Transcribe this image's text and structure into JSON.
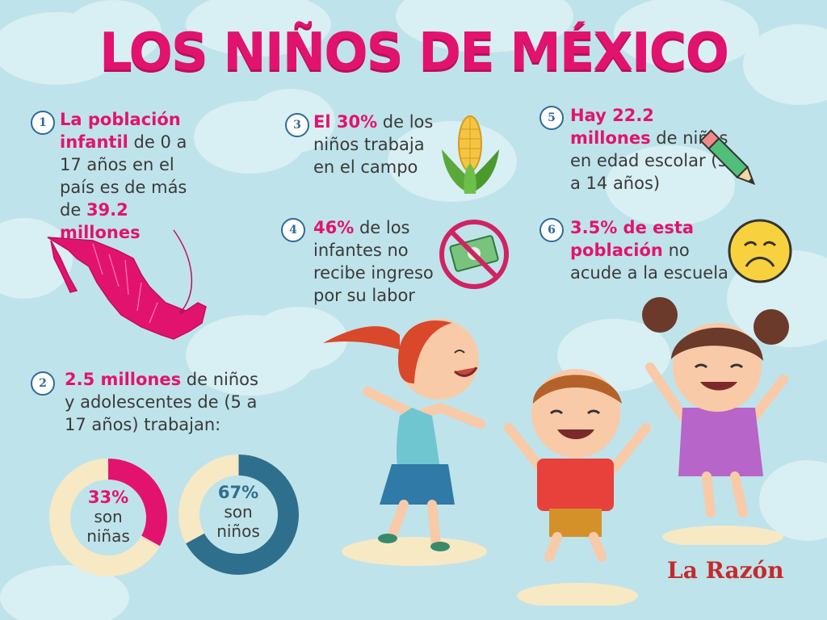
{
  "title": "LOS NIÑOS DE MÉXICO",
  "facts": [
    {
      "num": "1",
      "parts": [
        {
          "t": "La población infantil",
          "h": true
        },
        {
          "t": " de 0 a 17 años en el país es de más de ",
          "h": false
        },
        {
          "t": "39.2 millones",
          "h": true
        }
      ]
    },
    {
      "num": "2",
      "parts": [
        {
          "t": "2.5 millones",
          "h": true
        },
        {
          "t": " de niños y adolescentes de (5 a 17 años) trabajan:",
          "h": false
        }
      ]
    },
    {
      "num": "3",
      "parts": [
        {
          "t": "El 30%",
          "h": true
        },
        {
          "t": " de los niños trabaja en el campo",
          "h": false
        }
      ]
    },
    {
      "num": "4",
      "parts": [
        {
          "t": "46%",
          "h": true
        },
        {
          "t": " de los infantes no recibe ingreso por su labor",
          "h": false
        }
      ]
    },
    {
      "num": "5",
      "parts": [
        {
          "t": "Hay 22.2 millones",
          "h": true
        },
        {
          "t": " de niños en edad escolar (5 a 14 años)",
          "h": false
        }
      ]
    },
    {
      "num": "6",
      "parts": [
        {
          "t": "3.5% de esta población",
          "h": true
        },
        {
          "t": " no acude a la escuela",
          "h": false
        }
      ]
    }
  ],
  "donuts": {
    "girls": {
      "pct": "33%",
      "label": "son niñas",
      "value": 33,
      "color": "#e2136e",
      "pct_color": "#e2136e"
    },
    "boys": {
      "pct": "67%",
      "label": "son niños",
      "value": 67,
      "color": "#2e6f8e",
      "pct_color": "#2e6f8e"
    },
    "ring_rest_color": "#f7e9c4"
  },
  "icons": [
    "corn-icon",
    "no-money-icon",
    "pencil-icon",
    "sad-face-icon",
    "mexico-map-icon"
  ],
  "colors": {
    "accent": "#e2136e",
    "background": "#bfe3ea",
    "text": "#3a3a3a"
  },
  "logo": "La Razón"
}
